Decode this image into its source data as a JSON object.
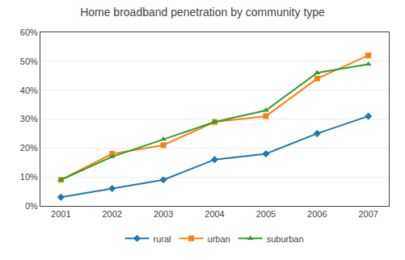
{
  "chart_data": {
    "type": "line",
    "title": "Home broadband penetration by community type",
    "x": [
      2001,
      2002,
      2003,
      2004,
      2005,
      2006,
      2007
    ],
    "series": [
      {
        "name": "rural",
        "marker": "diamond",
        "values": [
          0.03,
          0.06,
          0.09,
          0.16,
          0.18,
          0.25,
          0.31
        ]
      },
      {
        "name": "urban",
        "marker": "square",
        "values": [
          0.09,
          0.18,
          0.21,
          0.29,
          0.31,
          0.44,
          0.52
        ]
      },
      {
        "name": "suburban",
        "marker": "triangle",
        "values": [
          0.09,
          0.17,
          0.23,
          0.29,
          0.33,
          0.46,
          0.49
        ]
      }
    ],
    "xlim": [
      2000.6,
      2007.4
    ],
    "xticks": [
      2001,
      2002,
      2003,
      2004,
      2005,
      2006,
      2007
    ],
    "ylim": [
      0,
      0.6
    ],
    "yticks": [
      {
        "value": 0.0,
        "label": "0%"
      },
      {
        "value": 0.1,
        "label": "10%"
      },
      {
        "value": 0.2,
        "label": "20%"
      },
      {
        "value": 0.3,
        "label": "30%"
      },
      {
        "value": 0.4,
        "label": "40%"
      },
      {
        "value": 0.5,
        "label": "50%"
      },
      {
        "value": 0.6,
        "label": "60%"
      }
    ],
    "grid": true,
    "legend": "bottom"
  }
}
